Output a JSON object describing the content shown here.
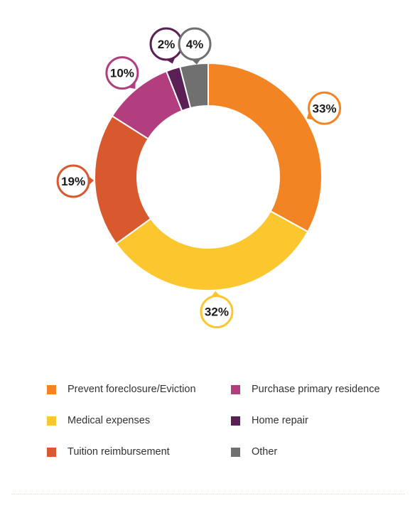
{
  "chart_data": {
    "type": "pie",
    "variant": "donut",
    "title": "",
    "slices": [
      {
        "label": "Prevent foreclosure/Eviction",
        "value": 33,
        "display": "33%",
        "color": "#F28424"
      },
      {
        "label": "Medical expenses",
        "value": 32,
        "display": "32%",
        "color": "#FCC62F"
      },
      {
        "label": "Tuition reimbursement",
        "value": 19,
        "display": "19%",
        "color": "#D9592F"
      },
      {
        "label": "Purchase primary residence",
        "value": 10,
        "display": "10%",
        "color": "#B23E80"
      },
      {
        "label": "Home repair",
        "value": 2,
        "display": "2%",
        "color": "#5A1F55"
      },
      {
        "label": "Other",
        "value": 4,
        "display": "4%",
        "color": "#707070"
      }
    ],
    "legend_position": "bottom"
  }
}
